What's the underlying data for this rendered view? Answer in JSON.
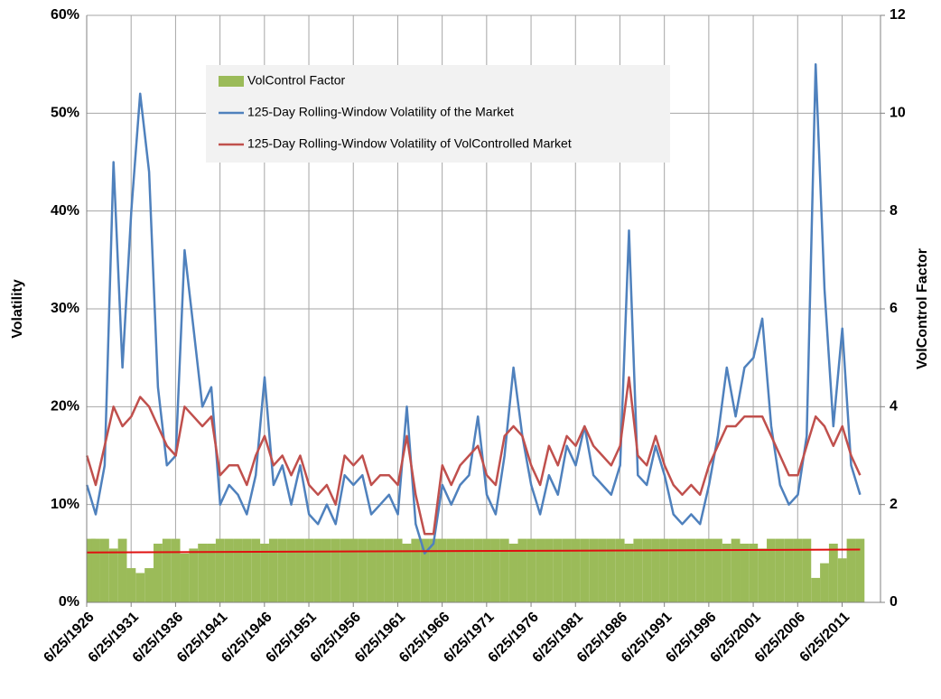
{
  "chart_data": {
    "type": "line",
    "y_label": "Volatility",
    "y2_label": "VolControl Factor",
    "x": [
      1926.5,
      1927.5,
      1928.5,
      1929.5,
      1930.5,
      1931.5,
      1932.5,
      1933.5,
      1934.5,
      1935.5,
      1936.5,
      1937.5,
      1938.5,
      1939.5,
      1940.5,
      1941.5,
      1942.5,
      1943.5,
      1944.5,
      1945.5,
      1946.5,
      1947.5,
      1948.5,
      1949.5,
      1950.5,
      1951.5,
      1952.5,
      1953.5,
      1954.5,
      1955.5,
      1956.5,
      1957.5,
      1958.5,
      1959.5,
      1960.5,
      1961.5,
      1962.5,
      1963.5,
      1964.5,
      1965.5,
      1966.5,
      1967.5,
      1968.5,
      1969.5,
      1970.5,
      1971.5,
      1972.5,
      1973.5,
      1974.5,
      1975.5,
      1976.5,
      1977.5,
      1978.5,
      1979.5,
      1980.5,
      1981.5,
      1982.5,
      1983.5,
      1984.5,
      1985.5,
      1986.5,
      1987.5,
      1988.5,
      1989.5,
      1990.5,
      1991.5,
      1992.5,
      1993.5,
      1994.5,
      1995.5,
      1996.5,
      1997.5,
      1998.5,
      1999.5,
      2000.5,
      2001.5,
      2002.5,
      2003.5,
      2004.5,
      2005.5,
      2006.5,
      2007.5,
      2008.5,
      2009.5,
      2010.5,
      2011.5,
      2012.5,
      2013.5
    ],
    "series": [
      {
        "name": "VolControl Factor",
        "color": "#9bbb59",
        "axis": "y2",
        "kind": "bar",
        "values": [
          1.3,
          1.3,
          1.3,
          1.1,
          1.3,
          0.7,
          0.6,
          0.7,
          1.2,
          1.3,
          1.3,
          1.0,
          1.1,
          1.2,
          1.2,
          1.3,
          1.3,
          1.3,
          1.3,
          1.3,
          1.2,
          1.3,
          1.3,
          1.3,
          1.3,
          1.3,
          1.3,
          1.3,
          1.3,
          1.3,
          1.3,
          1.3,
          1.3,
          1.3,
          1.3,
          1.3,
          1.2,
          1.3,
          1.3,
          1.3,
          1.3,
          1.3,
          1.3,
          1.3,
          1.3,
          1.3,
          1.3,
          1.3,
          1.2,
          1.3,
          1.3,
          1.3,
          1.3,
          1.3,
          1.3,
          1.3,
          1.3,
          1.3,
          1.3,
          1.3,
          1.3,
          1.2,
          1.3,
          1.3,
          1.3,
          1.3,
          1.3,
          1.3,
          1.3,
          1.3,
          1.3,
          1.3,
          1.2,
          1.3,
          1.2,
          1.2,
          1.1,
          1.3,
          1.3,
          1.3,
          1.3,
          1.3,
          0.5,
          0.8,
          1.2,
          0.9,
          1.3,
          1.3
        ]
      },
      {
        "name": "125-Day Rolling-Window Volatility of the Market",
        "color": "#4f81bd",
        "kind": "line",
        "values": [
          12,
          9,
          14,
          45,
          24,
          40,
          52,
          44,
          22,
          14,
          15,
          36,
          28,
          20,
          22,
          10,
          12,
          11,
          9,
          13,
          23,
          12,
          14,
          10,
          14,
          9,
          8,
          10,
          8,
          13,
          12,
          13,
          9,
          10,
          11,
          9,
          20,
          8,
          5,
          6,
          12,
          10,
          12,
          13,
          19,
          11,
          9,
          15,
          24,
          17,
          12,
          9,
          13,
          11,
          16,
          14,
          18,
          13,
          12,
          11,
          14,
          38,
          13,
          12,
          16,
          13,
          9,
          8,
          9,
          8,
          12,
          17,
          24,
          19,
          24,
          25,
          29,
          18,
          12,
          10,
          11,
          17,
          55,
          32,
          18,
          28,
          14,
          11
        ]
      },
      {
        "name": "125-Day Rolling-Window Volatility of VolControlled Market",
        "color": "#c0504d",
        "kind": "line",
        "values": [
          15,
          12,
          16,
          20,
          18,
          19,
          21,
          20,
          18,
          16,
          15,
          20,
          19,
          18,
          19,
          13,
          14,
          14,
          12,
          15,
          17,
          14,
          15,
          13,
          15,
          12,
          11,
          12,
          10,
          15,
          14,
          15,
          12,
          13,
          13,
          12,
          17,
          11,
          7,
          7,
          14,
          12,
          14,
          15,
          16,
          13,
          12,
          17,
          18,
          17,
          14,
          12,
          16,
          14,
          17,
          16,
          18,
          16,
          15,
          14,
          16,
          23,
          15,
          14,
          17,
          14,
          12,
          11,
          12,
          11,
          14,
          16,
          18,
          18,
          19,
          19,
          19,
          17,
          15,
          13,
          13,
          16,
          19,
          18,
          16,
          18,
          15,
          13
        ]
      }
    ],
    "reference_line": {
      "x": [
        1926.5,
        2013.5
      ],
      "values": [
        5.1,
        5.4
      ],
      "color": "#e01010"
    },
    "xlim": [
      1926.48,
      2015.8
    ],
    "xticks": [
      {
        "value": 1926.48,
        "label": "6/25/1926"
      },
      {
        "value": 1931.48,
        "label": "6/25/1931"
      },
      {
        "value": 1936.48,
        "label": "6/25/1936"
      },
      {
        "value": 1941.48,
        "label": "6/25/1941"
      },
      {
        "value": 1946.48,
        "label": "6/25/1946"
      },
      {
        "value": 1951.48,
        "label": "6/25/1951"
      },
      {
        "value": 1956.48,
        "label": "6/25/1956"
      },
      {
        "value": 1961.48,
        "label": "6/25/1961"
      },
      {
        "value": 1966.48,
        "label": "6/25/1966"
      },
      {
        "value": 1971.48,
        "label": "6/25/1971"
      },
      {
        "value": 1976.48,
        "label": "6/25/1976"
      },
      {
        "value": 1981.48,
        "label": "6/25/1981"
      },
      {
        "value": 1986.48,
        "label": "6/25/1986"
      },
      {
        "value": 1991.48,
        "label": "6/25/1991"
      },
      {
        "value": 1996.48,
        "label": "6/25/1996"
      },
      {
        "value": 2001.48,
        "label": "6/25/2001"
      },
      {
        "value": 2006.48,
        "label": "6/25/2006"
      },
      {
        "value": 2011.48,
        "label": "6/25/2011"
      }
    ],
    "ylim": [
      0,
      60
    ],
    "yticks": [
      {
        "value": 0,
        "label": "0%"
      },
      {
        "value": 10,
        "label": "10%"
      },
      {
        "value": 20,
        "label": "20%"
      },
      {
        "value": 30,
        "label": "30%"
      },
      {
        "value": 40,
        "label": "40%"
      },
      {
        "value": 50,
        "label": "50%"
      },
      {
        "value": 60,
        "label": "60%"
      }
    ],
    "y2lim": [
      0,
      12
    ],
    "y2ticks": [
      0,
      2,
      4,
      6,
      8,
      10,
      12
    ],
    "grid": true,
    "legend": "upper-center"
  }
}
